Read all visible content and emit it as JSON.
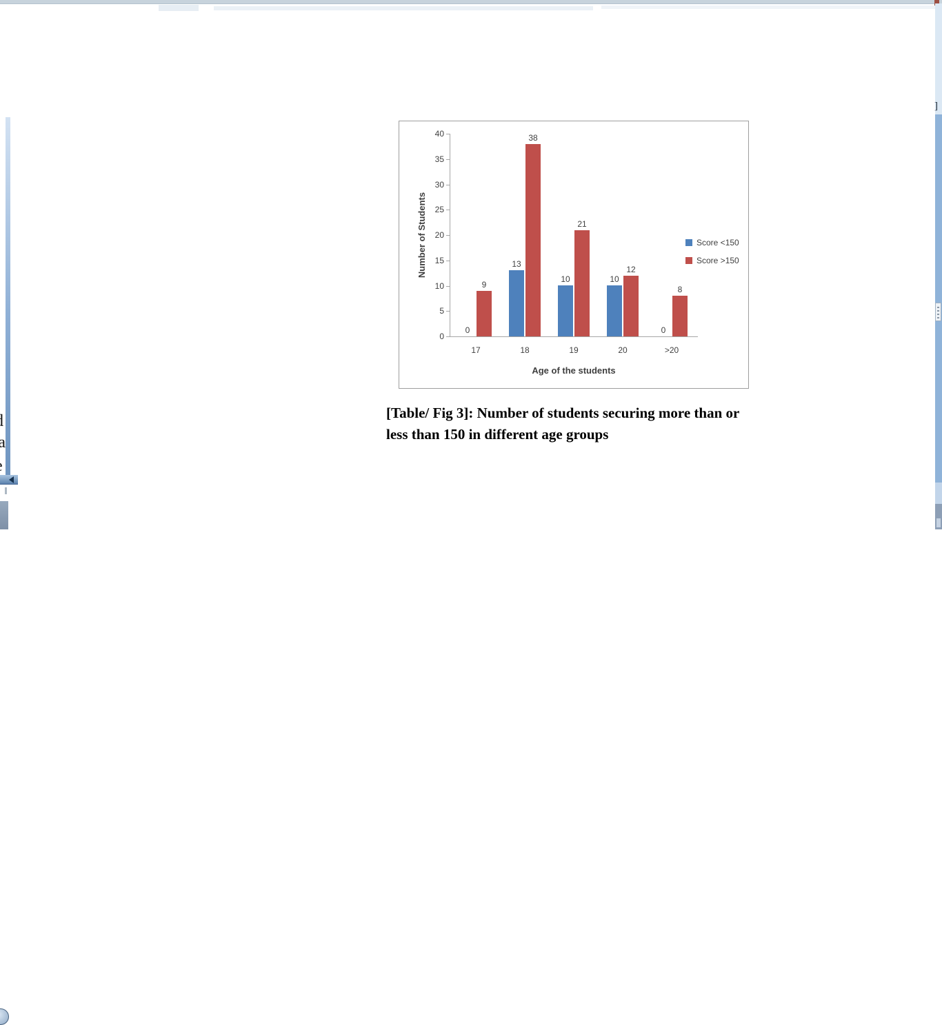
{
  "chart_data": {
    "type": "bar",
    "title": "",
    "categories": [
      "17",
      "18",
      "19",
      "20",
      ">20"
    ],
    "series": [
      {
        "name": "Score <150",
        "color": "#4e81bc",
        "values": [
          0,
          13,
          10,
          10,
          0
        ]
      },
      {
        "name": "Score >150",
        "color": "#bf4f4b",
        "values": [
          9,
          38,
          21,
          12,
          8
        ]
      }
    ],
    "xlabel": "Age of the students",
    "ylabel": "Number of Students",
    "ylim": [
      0,
      40
    ],
    "ytick_step": 5,
    "grid": false,
    "legend_position": "right-inside",
    "data_labels": true
  },
  "caption": {
    "line1": "[Table/ Fig 3]: Number of students securing more than or",
    "line2": "less than 150 in different age groups"
  },
  "edges": {
    "left_partial_letters": [
      "d",
      "'a",
      "e"
    ],
    "right_partial_glyph": "]"
  },
  "colors": {
    "axis": "#a6a6a6",
    "chart_text": "#3f3f3f",
    "panel_border": "#9e9e9e",
    "left_strip_top": "#d3e2f3",
    "left_strip_bottom": "#6f95c0",
    "right_strip": "#8fb3d9",
    "top_edge_line": "#c7d3dc"
  }
}
